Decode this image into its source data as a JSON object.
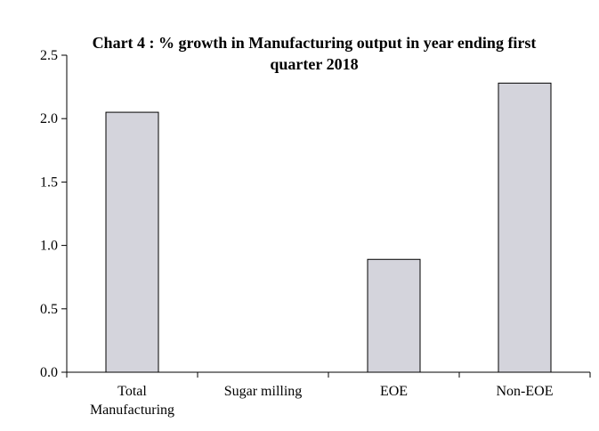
{
  "chart_data": {
    "type": "bar",
    "title_lines": [
      "Chart 4 : % growth in Manufacturing output in year ending first",
      "quarter 2018"
    ],
    "categories": [
      [
        "Total",
        "Manufacturing"
      ],
      [
        "Sugar milling"
      ],
      [
        "EOE"
      ],
      [
        "Non-EOE"
      ]
    ],
    "values": [
      2.05,
      0,
      0.89,
      2.28
    ],
    "ylim": [
      0,
      2.5
    ],
    "yticks": [
      "0.0",
      "0.5",
      "1.0",
      "1.5",
      "2.0",
      "2.5"
    ],
    "xlabel": "",
    "ylabel": "",
    "grid": false,
    "colors": {
      "bar_fill": "#d4d4dc",
      "bar_stroke": "#000000",
      "axis": "#000000",
      "frame": "#d0d0d0"
    }
  }
}
